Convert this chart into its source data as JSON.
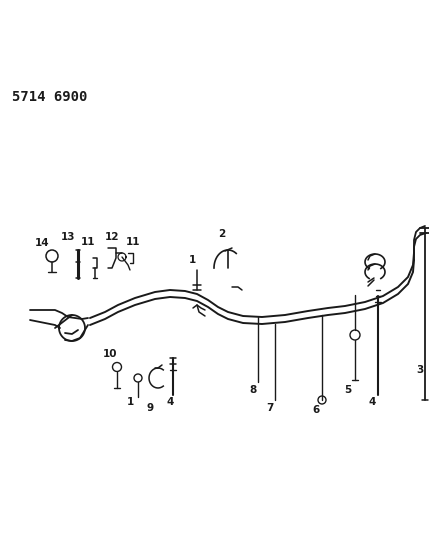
{
  "bg_color": "#ffffff",
  "fig_width": 4.29,
  "fig_height": 5.33,
  "dpi": 100,
  "part_number": "5714 6900",
  "line_color": "#1a1a1a",
  "line_width": 1.3,
  "label_fontsize": 7.5
}
